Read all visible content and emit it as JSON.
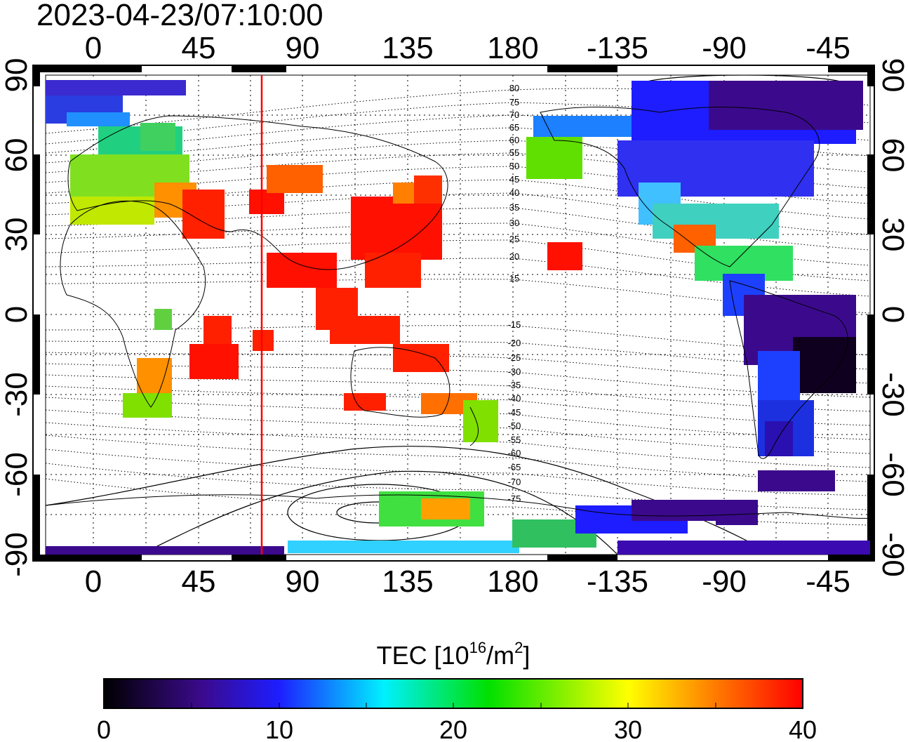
{
  "timestamp": "2023-04-23/07:10:00",
  "lon_ticks": [
    "0",
    "45",
    "90",
    "135",
    "180",
    "-135",
    "-90",
    "-45"
  ],
  "lat_ticks": [
    "90",
    "60",
    "30",
    "0",
    "-30",
    "-60",
    "-90"
  ],
  "contour_labels_north": [
    "80",
    "75",
    "70",
    "65",
    "60",
    "55",
    "50",
    "45",
    "40",
    "35",
    "30",
    "25",
    "20",
    "15"
  ],
  "contour_labels_south": [
    "-15",
    "-20",
    "-25",
    "-30",
    "-35",
    "-40",
    "-45",
    "-50",
    "-55",
    "-60",
    "-65",
    "-70",
    "-75"
  ],
  "colorbar": {
    "title_prefix": "TEC  [10",
    "title_exp": "16",
    "title_unit": "/m",
    "title_exp2": "2",
    "title_close": "]",
    "tick_labels": [
      "0",
      "10",
      "20",
      "30",
      "40"
    ],
    "min": 0,
    "max": 40,
    "colors": [
      "#000000",
      "#3b0a8c",
      "#1d1dff",
      "#00f0ff",
      "#00e000",
      "#ffff00",
      "#ff8000",
      "#ff0000"
    ]
  },
  "map": {
    "lon_left_edge": -20,
    "lon_right_edge": 340,
    "lat_top": 90,
    "lat_bottom": -90,
    "marker_longitude": 72,
    "marker_color": "#ff0000"
  }
}
